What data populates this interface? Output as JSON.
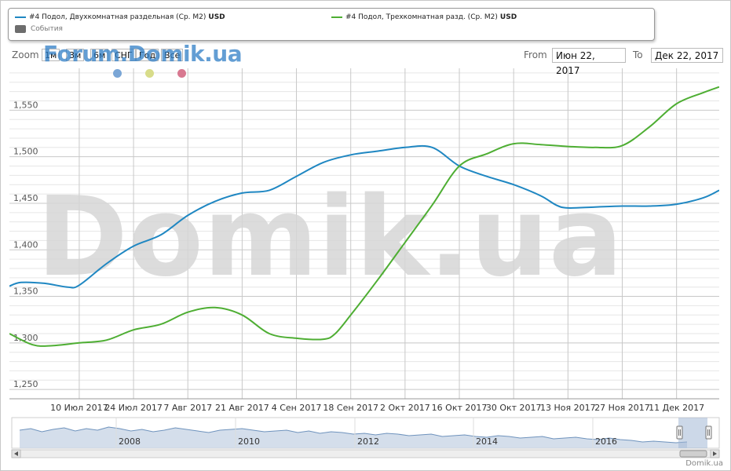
{
  "legend": {
    "series1": "#4 Подол, Двухкомнатная раздельная (Ср. М2)",
    "series1_unit": "USD",
    "series2": "#4 Подол, Трехкомнатная разд. (Ср. М2)",
    "series2_unit": "USD",
    "events": "События"
  },
  "zoom": {
    "label": "Zoom",
    "buttons": [
      "1м",
      "3м",
      "6м",
      "СНГ",
      "Год",
      "Все"
    ]
  },
  "watermark_small": "Forum.Domik.ua",
  "watermark_big": "Domik.ua",
  "range": {
    "from_label": "From",
    "from_value": "Июн 22, 2017",
    "to_label": "To",
    "to_value": "Дек 22, 2017"
  },
  "event_dots": [
    "#7aa6d6",
    "#d8dc8a",
    "#d87890"
  ],
  "credit": "Domik.ua",
  "colors": {
    "series1": "#1f87c2",
    "series2": "#4eae33",
    "navigator_fill": "#c9d6e6",
    "navigator_line": "#6f93bd"
  },
  "chart_data": {
    "type": "line",
    "ylim": [
      1240,
      1595
    ],
    "y_ticks": [
      1250,
      1300,
      1350,
      1400,
      1450,
      1500,
      1550
    ],
    "y_tick_labels": [
      "1,250",
      "1,300",
      "1,350",
      "1,400",
      "1,450",
      "1,500",
      "1,550"
    ],
    "xlim": [
      "2017-06-22",
      "2017-12-22"
    ],
    "x_ticks": [
      "2017-07-10",
      "2017-07-24",
      "2017-08-07",
      "2017-08-21",
      "2017-09-04",
      "2017-09-18",
      "2017-10-02",
      "2017-10-16",
      "2017-10-30",
      "2017-11-13",
      "2017-11-27",
      "2017-12-11"
    ],
    "x_tick_labels": [
      "10 Июл 2017",
      "24 Июл 2017",
      "7 Авг 2017",
      "21 Авг 2017",
      "4 Сен 2017",
      "18 Сен 2017",
      "2 Окт 2017",
      "16 Окт 2017",
      "30 Окт 2017",
      "13 Ноя 2017",
      "27 Ноя 2017",
      "11 Дек 2017"
    ],
    "series": [
      {
        "name": "#4 Подол, Двухкомнатная раздельная (Ср. М2)",
        "color": "#1f87c2",
        "x": [
          "2017-06-22",
          "2017-06-25",
          "2017-07-01",
          "2017-07-07",
          "2017-07-10",
          "2017-07-17",
          "2017-07-24",
          "2017-07-31",
          "2017-08-07",
          "2017-08-14",
          "2017-08-21",
          "2017-08-28",
          "2017-09-04",
          "2017-09-11",
          "2017-09-18",
          "2017-09-25",
          "2017-10-02",
          "2017-10-09",
          "2017-10-16",
          "2017-10-23",
          "2017-10-30",
          "2017-11-06",
          "2017-11-10",
          "2017-11-13",
          "2017-11-20",
          "2017-11-27",
          "2017-12-04",
          "2017-12-11",
          "2017-12-18",
          "2017-12-22"
        ],
        "y": [
          1361,
          1365,
          1364,
          1360,
          1362,
          1385,
          1404,
          1416,
          1437,
          1452,
          1461,
          1464,
          1479,
          1494,
          1502,
          1506,
          1510,
          1510,
          1490,
          1479,
          1470,
          1458,
          1448,
          1445,
          1446,
          1447,
          1447,
          1449,
          1456,
          1464
        ]
      },
      {
        "name": "#4 Подол, Трехкомнатная разд. (Ср. М2)",
        "color": "#4eae33",
        "x": [
          "2017-06-22",
          "2017-06-28",
          "2017-07-03",
          "2017-07-10",
          "2017-07-17",
          "2017-07-24",
          "2017-07-31",
          "2017-08-07",
          "2017-08-14",
          "2017-08-21",
          "2017-08-28",
          "2017-09-04",
          "2017-09-11",
          "2017-09-14",
          "2017-09-18",
          "2017-09-25",
          "2017-10-02",
          "2017-10-09",
          "2017-10-16",
          "2017-10-23",
          "2017-10-30",
          "2017-11-06",
          "2017-11-13",
          "2017-11-20",
          "2017-11-27",
          "2017-12-04",
          "2017-12-11",
          "2017-12-18",
          "2017-12-22"
        ],
        "y": [
          1310,
          1298,
          1297,
          1300,
          1303,
          1314,
          1320,
          1333,
          1338,
          1330,
          1310,
          1305,
          1304,
          1310,
          1330,
          1368,
          1408,
          1448,
          1490,
          1503,
          1514,
          1513,
          1511,
          1510,
          1512,
          1532,
          1557,
          1569,
          1575
        ]
      }
    ],
    "navigator": {
      "x_tick_labels": [
        "2008",
        "2010",
        "2012",
        "2014",
        "2016"
      ]
    }
  }
}
